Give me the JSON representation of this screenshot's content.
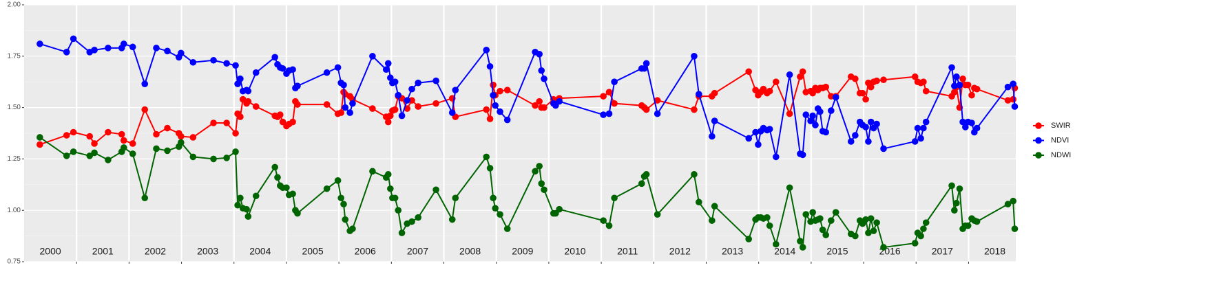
{
  "chart_data": {
    "type": "line",
    "x": [
      2000.3,
      2000.81,
      2000.94,
      2001.25,
      2001.34,
      2001.6,
      2001.86,
      2001.9,
      2002.07,
      2002.3,
      2002.52,
      2002.73,
      2002.95,
      2002.99,
      2003.22,
      2003.61,
      2003.86,
      2004.03,
      2004.07,
      2004.12,
      2004.17,
      2004.24,
      2004.27,
      2004.42,
      2004.78,
      2004.83,
      2004.88,
      2004.93,
      2005.0,
      2005.05,
      2005.12,
      2005.17,
      2005.21,
      2005.77,
      2005.98,
      2006.04,
      2006.09,
      2006.12,
      2006.21,
      2006.26,
      2006.64,
      2006.9,
      2006.94,
      2006.98,
      2007.02,
      2007.07,
      2007.13,
      2007.2,
      2007.3,
      2007.39,
      2007.51,
      2007.85,
      2008.16,
      2008.22,
      2008.81,
      2008.88,
      2008.94,
      2008.98,
      2009.07,
      2009.21,
      2009.74,
      2009.82,
      2009.86,
      2009.91,
      2010.09,
      2010.13,
      2010.2,
      2011.04,
      2011.15,
      2011.25,
      2011.77,
      2011.82,
      2011.86,
      2012.07,
      2012.77,
      2012.86,
      2013.11,
      2013.16,
      2013.81,
      2013.94,
      2013.99,
      2014.04,
      2014.09,
      2014.16,
      2014.21,
      2014.33,
      2014.59,
      2014.79,
      2014.84,
      2014.9,
      2014.99,
      2015.03,
      2015.08,
      2015.13,
      2015.17,
      2015.22,
      2015.28,
      2015.38,
      2015.47,
      2015.76,
      2015.84,
      2015.93,
      2015.98,
      2016.04,
      2016.09,
      2016.14,
      2016.19,
      2016.25,
      2016.38,
      2016.98,
      2017.03,
      2017.09,
      2017.14,
      2017.19,
      2017.68,
      2017.73,
      2017.77,
      2017.83,
      2017.89,
      2017.94,
      2017.99,
      2018.06,
      2018.11,
      2018.16,
      2018.75,
      2018.85,
      2018.88
    ],
    "series": [
      {
        "name": "SWIR",
        "color": "#ff0000",
        "values": [
          1.32,
          1.365,
          1.38,
          1.36,
          1.325,
          1.38,
          1.37,
          1.34,
          1.325,
          1.49,
          1.37,
          1.4,
          1.375,
          1.36,
          1.355,
          1.425,
          1.425,
          1.375,
          1.47,
          1.455,
          1.54,
          1.52,
          1.53,
          1.505,
          1.46,
          1.455,
          1.465,
          1.43,
          1.41,
          1.42,
          1.43,
          1.53,
          1.515,
          1.515,
          1.47,
          1.475,
          1.575,
          1.565,
          1.555,
          1.54,
          1.495,
          1.455,
          1.43,
          1.46,
          1.485,
          1.49,
          1.555,
          1.545,
          1.495,
          1.535,
          1.505,
          1.52,
          1.545,
          1.455,
          1.49,
          1.445,
          1.61,
          1.56,
          1.58,
          1.585,
          1.51,
          1.53,
          1.5,
          1.5,
          1.54,
          1.52,
          1.545,
          1.555,
          1.575,
          1.52,
          1.51,
          1.5,
          1.49,
          1.535,
          1.49,
          1.555,
          1.555,
          1.57,
          1.675,
          1.585,
          1.56,
          1.575,
          1.59,
          1.57,
          1.58,
          1.625,
          1.47,
          1.65,
          1.675,
          1.575,
          1.58,
          1.57,
          1.595,
          1.585,
          1.595,
          1.595,
          1.6,
          1.555,
          1.555,
          1.65,
          1.64,
          1.57,
          1.57,
          1.54,
          1.62,
          1.6,
          1.625,
          1.63,
          1.635,
          1.65,
          1.625,
          1.62,
          1.625,
          1.58,
          1.555,
          1.575,
          1.6,
          1.5,
          1.64,
          1.61,
          1.61,
          1.56,
          1.595,
          1.59,
          1.535,
          1.54,
          1.595
        ]
      },
      {
        "name": "NDVI",
        "color": "#0000ff",
        "values": [
          1.81,
          1.77,
          1.835,
          1.77,
          1.78,
          1.79,
          1.79,
          1.81,
          1.795,
          1.615,
          1.79,
          1.775,
          1.745,
          1.765,
          1.72,
          1.73,
          1.715,
          1.705,
          1.615,
          1.64,
          1.58,
          1.585,
          1.58,
          1.67,
          1.745,
          1.71,
          1.695,
          1.69,
          1.665,
          1.68,
          1.685,
          1.595,
          1.605,
          1.67,
          1.695,
          1.62,
          1.61,
          1.5,
          1.475,
          1.52,
          1.75,
          1.685,
          1.715,
          1.645,
          1.62,
          1.625,
          1.56,
          1.46,
          1.535,
          1.59,
          1.62,
          1.63,
          1.475,
          1.585,
          1.78,
          1.7,
          1.56,
          1.51,
          1.48,
          1.44,
          1.77,
          1.76,
          1.68,
          1.64,
          1.52,
          1.51,
          1.53,
          1.465,
          1.47,
          1.625,
          1.69,
          1.69,
          1.715,
          1.47,
          1.75,
          1.565,
          1.36,
          1.435,
          1.35,
          1.38,
          1.32,
          1.385,
          1.4,
          1.39,
          1.395,
          1.26,
          1.66,
          1.275,
          1.27,
          1.465,
          1.435,
          1.46,
          1.415,
          1.495,
          1.48,
          1.385,
          1.38,
          1.485,
          1.55,
          1.335,
          1.365,
          1.43,
          1.415,
          1.405,
          1.335,
          1.43,
          1.4,
          1.42,
          1.3,
          1.335,
          1.4,
          1.35,
          1.4,
          1.43,
          1.695,
          1.605,
          1.65,
          1.61,
          1.43,
          1.405,
          1.43,
          1.425,
          1.38,
          1.4,
          1.6,
          1.615,
          1.505
        ]
      },
      {
        "name": "NDWI",
        "color": "#006400",
        "values": [
          1.355,
          1.265,
          1.285,
          1.265,
          1.28,
          1.245,
          1.285,
          1.305,
          1.275,
          1.06,
          1.3,
          1.29,
          1.31,
          1.33,
          1.26,
          1.25,
          1.255,
          1.285,
          1.025,
          1.06,
          1.01,
          1.005,
          0.97,
          1.07,
          1.21,
          1.16,
          1.12,
          1.11,
          1.11,
          1.075,
          1.08,
          1.0,
          0.985,
          1.105,
          1.145,
          1.06,
          1.03,
          0.955,
          0.9,
          0.91,
          1.19,
          1.16,
          1.175,
          1.105,
          1.06,
          1.06,
          1.0,
          0.89,
          0.935,
          0.945,
          0.965,
          1.1,
          0.955,
          1.06,
          1.26,
          1.205,
          1.06,
          1.01,
          0.98,
          0.91,
          1.19,
          1.215,
          1.13,
          1.1,
          0.985,
          0.985,
          1.005,
          0.95,
          0.925,
          1.06,
          1.13,
          1.165,
          1.175,
          0.98,
          1.175,
          1.04,
          0.95,
          1.02,
          0.86,
          0.955,
          0.965,
          0.965,
          0.96,
          0.965,
          0.925,
          0.835,
          1.11,
          0.85,
          0.82,
          0.98,
          0.945,
          0.99,
          0.95,
          0.955,
          0.96,
          0.905,
          0.88,
          0.95,
          0.99,
          0.885,
          0.875,
          0.95,
          0.935,
          0.955,
          0.89,
          0.96,
          0.9,
          0.94,
          0.82,
          0.84,
          0.89,
          0.875,
          0.91,
          0.94,
          1.12,
          1.0,
          1.035,
          1.105,
          0.91,
          0.925,
          0.925,
          0.96,
          0.95,
          0.945,
          1.03,
          1.045,
          0.91
        ]
      }
    ],
    "xlim": [
      2000,
      2018.9
    ],
    "xticks": [
      2001,
      2002,
      2003,
      2004,
      2005,
      2006,
      2007,
      2008,
      2009,
      2010,
      2011,
      2012,
      2013,
      2014,
      2015,
      2016,
      2017,
      2018
    ],
    "year_labels": [
      "2000",
      "2001",
      "2002",
      "2003",
      "2004",
      "2005",
      "2006",
      "2007",
      "2008",
      "2009",
      "2010",
      "2011",
      "2012",
      "2013",
      "2014",
      "2015",
      "2016",
      "2017",
      "2018"
    ],
    "ylim": [
      0.75,
      2.0
    ],
    "yticks": [
      {
        "value": 0.75,
        "label": "0.75"
      },
      {
        "value": 1.0,
        "label": "1.00"
      },
      {
        "value": 1.25,
        "label": "1.25"
      },
      {
        "value": 1.5,
        "label": "1.50"
      },
      {
        "value": 1.75,
        "label": "1.75"
      },
      {
        "value": 2.0,
        "label": "2.00"
      }
    ],
    "grid": true,
    "legend": "right"
  }
}
